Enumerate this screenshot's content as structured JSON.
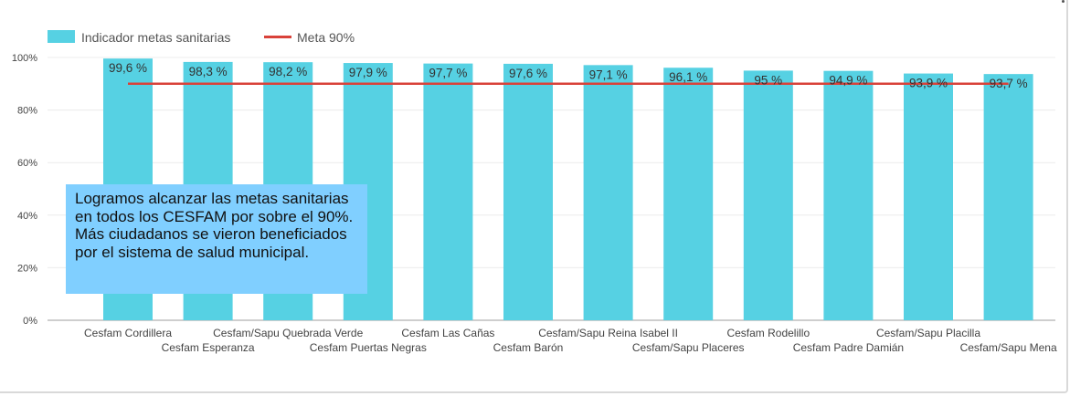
{
  "chart_data": {
    "type": "bar",
    "categories": [
      "Cesfam Cordillera",
      "Cesfam Esperanza",
      "Cesfam/Sapu Quebrada Verde",
      "Cesfam Puertas Negras",
      "Cesfam Las Cañas",
      "Cesfam Barón",
      "Cesfam/Sapu Reina Isabel II",
      "Cesfam/Sapu Placeres",
      "Cesfam Rodelillo",
      "Cesfam Padre Damián",
      "Cesfam/Sapu Placilla",
      "Cesfam/Sapu Mena"
    ],
    "series": [
      {
        "name": "Indicador metas sanitarias",
        "type": "bar",
        "color": "#56d1e3",
        "values": [
          99.6,
          98.3,
          98.2,
          97.9,
          97.7,
          97.6,
          97.1,
          96.1,
          95,
          94.9,
          93.9,
          93.7
        ],
        "labels": [
          "99,6 %",
          "98,3 %",
          "98,2 %",
          "97,9 %",
          "97,7 %",
          "97,6 %",
          "97,1 %",
          "96,1 %",
          "95 %",
          "94,9 %",
          "93,9 %",
          "93,7 %"
        ]
      },
      {
        "name": "Meta 90%",
        "type": "line",
        "color": "#d9423a",
        "value": 90
      }
    ],
    "yticks": [
      "0%",
      "20%",
      "40%",
      "60%",
      "80%",
      "100%"
    ],
    "ylim": [
      0,
      100
    ],
    "legend": "top-left",
    "grid": true,
    "annotation": "Logramos alcanzar las metas sanitarias en todos los CESFAM por sobre el 90%. Más ciudadanos se vieron beneficiados por el sistema de salud municipal."
  }
}
